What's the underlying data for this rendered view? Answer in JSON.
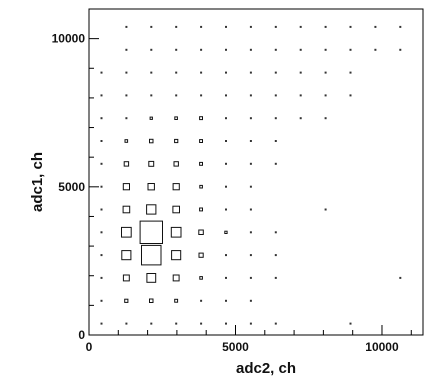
{
  "chart_data": {
    "type": "heatmap",
    "subtype": "box-histogram",
    "title": "",
    "xlabel": "adc2, ch",
    "ylabel": "adc1, ch",
    "xlim": [
      0,
      11400
    ],
    "ylim": [
      0,
      11000
    ],
    "x_major_ticks": [
      0,
      5000,
      10000
    ],
    "y_major_ticks": [
      0,
      5000,
      10000
    ],
    "x_tick_labels": [
      "0",
      "5000",
      "10000"
    ],
    "y_tick_labels": [
      "0",
      "5000",
      "10000"
    ],
    "bin_width": 850,
    "bin_height": 770,
    "x_bin_centers": [
      425,
      1275,
      2125,
      2975,
      3825,
      4675,
      5525,
      6375,
      7225,
      8075,
      8925,
      9775,
      10625
    ],
    "y_bin_centers": [
      385,
      1155,
      1925,
      2695,
      3465,
      4235,
      5005,
      5775,
      6545,
      7315,
      8085,
      8855,
      9625,
      10395
    ],
    "counts": [
      [
        1,
        1,
        1,
        1,
        1,
        1,
        1,
        1,
        0,
        0,
        1,
        0,
        0
      ],
      [
        1,
        6,
        7,
        5,
        2,
        1,
        1,
        0,
        0,
        0,
        0,
        0,
        0
      ],
      [
        2,
        20,
        45,
        20,
        4,
        1,
        1,
        1,
        0,
        0,
        0,
        0,
        1
      ],
      [
        1,
        48,
        220,
        48,
        10,
        2,
        1,
        1,
        0,
        0,
        0,
        0,
        0
      ],
      [
        1,
        55,
        290,
        55,
        12,
        3,
        1,
        1,
        0,
        0,
        0,
        0,
        0
      ],
      [
        1,
        25,
        50,
        25,
        5,
        1,
        1,
        0,
        0,
        1,
        0,
        0,
        0
      ],
      [
        1,
        22,
        24,
        22,
        4,
        1,
        1,
        0,
        0,
        0,
        0,
        0,
        0
      ],
      [
        1,
        11,
        14,
        11,
        5,
        2,
        1,
        1,
        0,
        0,
        0,
        0,
        0
      ],
      [
        1,
        4,
        7,
        6,
        5,
        2,
        1,
        1,
        0,
        0,
        0,
        0,
        0
      ],
      [
        1,
        2,
        3,
        4,
        5,
        2,
        1,
        1,
        1,
        1,
        0,
        0,
        0
      ],
      [
        1,
        1,
        1,
        2,
        2,
        2,
        1,
        1,
        1,
        1,
        1,
        0,
        0
      ],
      [
        1,
        1,
        1,
        1,
        1,
        1,
        1,
        1,
        1,
        1,
        1,
        0,
        0
      ],
      [
        0,
        1,
        1,
        1,
        1,
        1,
        1,
        1,
        1,
        1,
        1,
        1,
        1
      ],
      [
        0,
        1,
        1,
        1,
        1,
        1,
        1,
        1,
        1,
        1,
        1,
        1,
        1
      ]
    ],
    "grid": false,
    "legend": "none"
  }
}
